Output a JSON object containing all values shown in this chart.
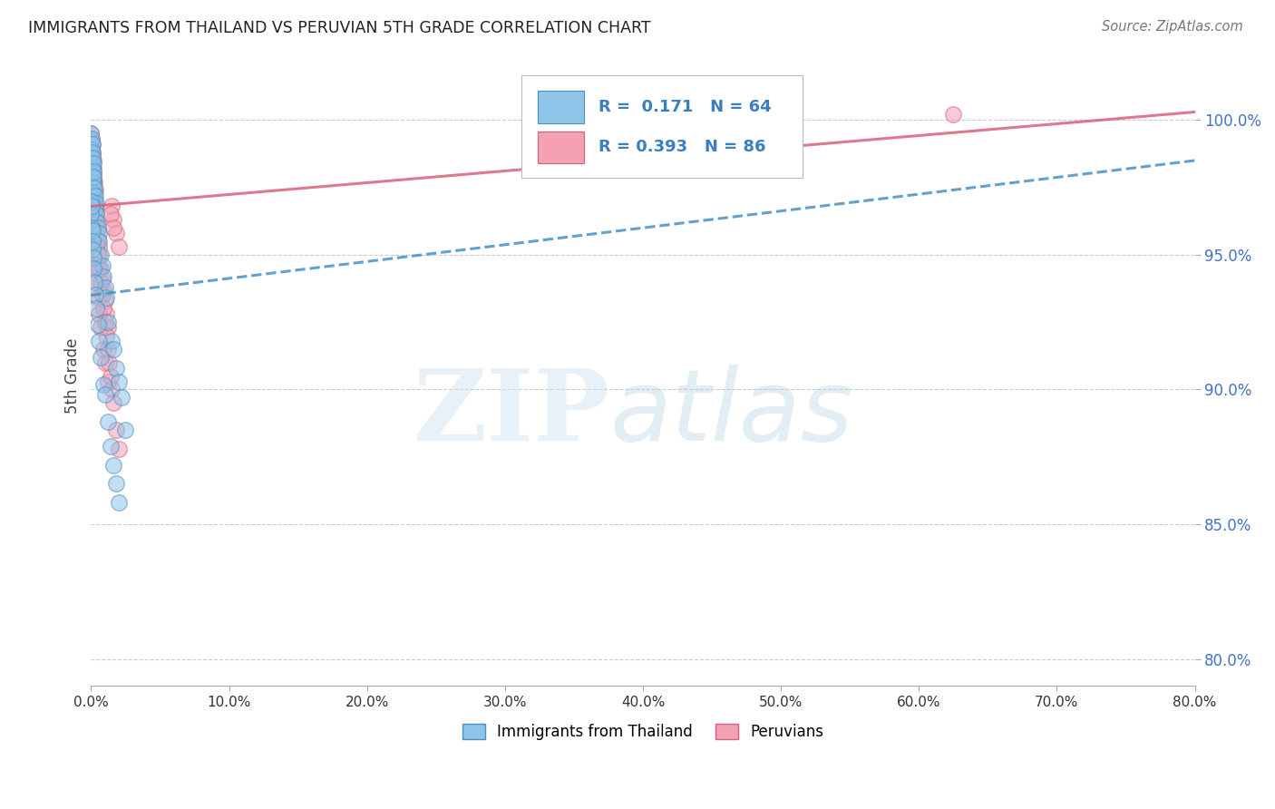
{
  "title": "IMMIGRANTS FROM THAILAND VS PERUVIAN 5TH GRADE CORRELATION CHART",
  "source": "Source: ZipAtlas.com",
  "ylabel": "5th Grade",
  "yticks": [
    80.0,
    85.0,
    90.0,
    95.0,
    100.0
  ],
  "ytick_labels": [
    "80.0%",
    "85.0%",
    "90.0%",
    "95.0%",
    "100.0%"
  ],
  "xmin": 0.0,
  "xmax": 80.0,
  "ymin": 79.0,
  "ymax": 102.0,
  "legend_label1": "Immigrants from Thailand",
  "legend_label2": "Peruvians",
  "R1": 0.171,
  "N1": 64,
  "R2": 0.393,
  "N2": 86,
  "color_blue": "#8ec4e8",
  "color_pink": "#f4a0b5",
  "color_blue_line": "#4a90c4",
  "color_pink_line": "#d9607a",
  "blue_x": [
    0.0,
    0.0,
    0.0,
    0.0,
    0.0,
    0.05,
    0.05,
    0.05,
    0.08,
    0.08,
    0.1,
    0.1,
    0.12,
    0.12,
    0.15,
    0.15,
    0.18,
    0.18,
    0.2,
    0.2,
    0.25,
    0.25,
    0.3,
    0.3,
    0.35,
    0.4,
    0.45,
    0.5,
    0.55,
    0.6,
    0.7,
    0.8,
    0.9,
    1.0,
    1.1,
    1.2,
    1.5,
    1.6,
    1.8,
    2.0,
    2.2,
    2.5,
    0.0,
    0.0,
    0.05,
    0.05,
    0.08,
    0.1,
    0.12,
    0.15,
    0.2,
    0.25,
    0.3,
    0.4,
    0.5,
    0.6,
    0.7,
    0.9,
    1.0,
    1.2,
    1.4,
    1.6,
    1.8,
    2.0
  ],
  "blue_y": [
    99.5,
    99.2,
    98.8,
    98.5,
    98.0,
    99.3,
    98.9,
    98.6,
    99.1,
    98.4,
    98.8,
    98.2,
    98.6,
    97.9,
    98.4,
    97.7,
    98.1,
    97.5,
    97.9,
    97.3,
    97.5,
    97.0,
    97.2,
    96.7,
    96.9,
    96.5,
    96.2,
    96.0,
    95.8,
    95.5,
    95.0,
    94.6,
    94.2,
    93.8,
    93.4,
    92.5,
    91.8,
    91.5,
    90.8,
    90.3,
    89.7,
    88.5,
    97.0,
    96.5,
    96.8,
    96.0,
    95.9,
    95.5,
    95.2,
    94.9,
    94.5,
    94.0,
    93.5,
    93.0,
    92.4,
    91.8,
    91.2,
    90.2,
    89.8,
    88.8,
    87.9,
    87.2,
    86.5,
    85.8
  ],
  "pink_x": [
    0.0,
    0.0,
    0.0,
    0.0,
    0.0,
    0.05,
    0.05,
    0.05,
    0.08,
    0.08,
    0.1,
    0.1,
    0.12,
    0.12,
    0.15,
    0.15,
    0.18,
    0.18,
    0.2,
    0.2,
    0.25,
    0.25,
    0.3,
    0.3,
    0.35,
    0.4,
    0.45,
    0.5,
    0.55,
    0.6,
    0.7,
    0.8,
    0.9,
    1.0,
    1.1,
    1.2,
    1.5,
    1.6,
    1.8,
    2.0,
    0.0,
    0.0,
    0.05,
    0.05,
    0.08,
    0.1,
    0.12,
    0.15,
    0.2,
    0.25,
    0.3,
    0.4,
    0.5,
    0.6,
    0.7,
    0.9,
    1.0,
    1.2,
    1.4,
    1.6,
    0.0,
    0.0,
    0.05,
    0.08,
    0.1,
    0.15,
    0.2,
    0.25,
    0.3,
    0.35,
    0.4,
    0.5,
    0.6,
    0.7,
    0.8,
    0.9,
    1.0,
    1.1,
    1.2,
    1.3,
    1.4,
    1.5,
    1.6,
    1.8,
    2.0,
    62.5
  ],
  "pink_y": [
    99.5,
    99.2,
    99.0,
    98.7,
    98.4,
    99.3,
    98.9,
    98.6,
    99.1,
    98.4,
    98.8,
    98.2,
    98.7,
    98.0,
    98.5,
    97.8,
    98.2,
    97.6,
    98.0,
    97.4,
    97.7,
    97.1,
    97.4,
    96.8,
    96.5,
    96.2,
    95.9,
    95.6,
    95.3,
    95.0,
    94.5,
    94.1,
    93.7,
    93.3,
    92.8,
    92.3,
    96.8,
    96.3,
    95.8,
    95.3,
    97.5,
    97.0,
    97.2,
    96.7,
    96.8,
    96.4,
    96.0,
    95.7,
    95.3,
    94.9,
    94.5,
    94.0,
    93.4,
    92.8,
    92.3,
    91.5,
    91.0,
    90.3,
    96.5,
    96.0,
    98.8,
    98.3,
    98.5,
    98.0,
    97.7,
    97.3,
    97.0,
    96.6,
    96.2,
    95.8,
    95.4,
    95.0,
    94.5,
    94.0,
    93.5,
    93.0,
    92.5,
    92.0,
    91.5,
    91.0,
    90.5,
    90.0,
    89.5,
    88.5,
    87.8,
    100.2
  ],
  "blue_trend_x": [
    0.0,
    80.0
  ],
  "blue_trend_y": [
    93.5,
    98.5
  ],
  "pink_trend_x": [
    0.0,
    80.0
  ],
  "pink_trend_y": [
    96.8,
    100.3
  ]
}
